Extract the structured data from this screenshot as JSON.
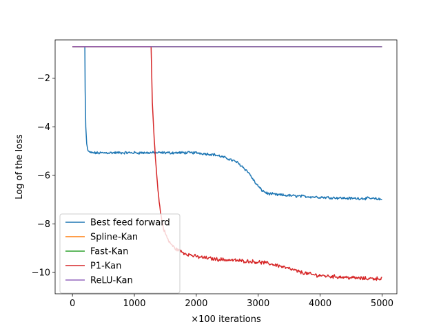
{
  "chart_data": {
    "type": "line",
    "title": "",
    "xlabel": "×100 iterations",
    "ylabel": "Log of the loss",
    "xlim": [
      -280,
      5240
    ],
    "ylim": [
      -10.88,
      -0.42
    ],
    "xticks": [
      0,
      1000,
      2000,
      3000,
      4000,
      5000
    ],
    "xtick_labels": [
      "0",
      "1000",
      "2000",
      "3000",
      "4000",
      "5000"
    ],
    "yticks": [
      -2,
      -4,
      -6,
      -8,
      -10
    ],
    "ytick_labels": [
      "−2",
      "−4",
      "−6",
      "−8",
      "−10"
    ],
    "grid": false,
    "legend_position": "lower-left",
    "series": [
      {
        "name": "Best feed forward",
        "color": "#1f77b4",
        "noise": 0.045,
        "x": [
          0,
          200,
          205,
          215,
          230,
          250,
          280,
          320,
          400,
          600,
          1000,
          1500,
          2000,
          2300,
          2500,
          2650,
          2750,
          2850,
          2950,
          3050,
          3150,
          3300,
          3600,
          4000,
          4500,
          4800,
          4900,
          5000
        ],
        "y": [
          -0.7,
          -0.7,
          -2.5,
          -4.0,
          -4.7,
          -4.98,
          -5.05,
          -5.07,
          -5.08,
          -5.07,
          -5.07,
          -5.07,
          -5.07,
          -5.15,
          -5.3,
          -5.45,
          -5.65,
          -5.9,
          -6.3,
          -6.6,
          -6.75,
          -6.8,
          -6.85,
          -6.9,
          -6.95,
          -6.95,
          -6.97,
          -7.0
        ]
      },
      {
        "name": "Spline-Kan",
        "color": "#ff7f0e",
        "noise": 0,
        "x": [
          0,
          5000
        ],
        "y": [
          -0.7,
          -0.7
        ]
      },
      {
        "name": "Fast-Kan",
        "color": "#2ca02c",
        "noise": 0,
        "x": [
          0,
          5000
        ],
        "y": [
          -0.7,
          -0.7
        ]
      },
      {
        "name": "P1-Kan",
        "color": "#d62728",
        "noise": 0.06,
        "x": [
          0,
          1270,
          1290,
          1320,
          1350,
          1380,
          1420,
          1470,
          1550,
          1650,
          1800,
          2000,
          2300,
          2600,
          2900,
          3100,
          3300,
          3500,
          3700,
          3900,
          4100,
          4400,
          4700,
          5000
        ],
        "y": [
          -0.7,
          -0.7,
          -3.0,
          -4.5,
          -5.6,
          -6.6,
          -7.5,
          -8.2,
          -8.7,
          -9.0,
          -9.2,
          -9.35,
          -9.45,
          -9.5,
          -9.55,
          -9.6,
          -9.7,
          -9.85,
          -10.0,
          -10.1,
          -10.15,
          -10.2,
          -10.25,
          -10.25
        ]
      },
      {
        "name": "ReLU-Kan",
        "color": "#9467bd",
        "noise": 0,
        "x": [
          0,
          5000
        ],
        "y": [
          -0.7,
          -0.7
        ]
      }
    ]
  }
}
